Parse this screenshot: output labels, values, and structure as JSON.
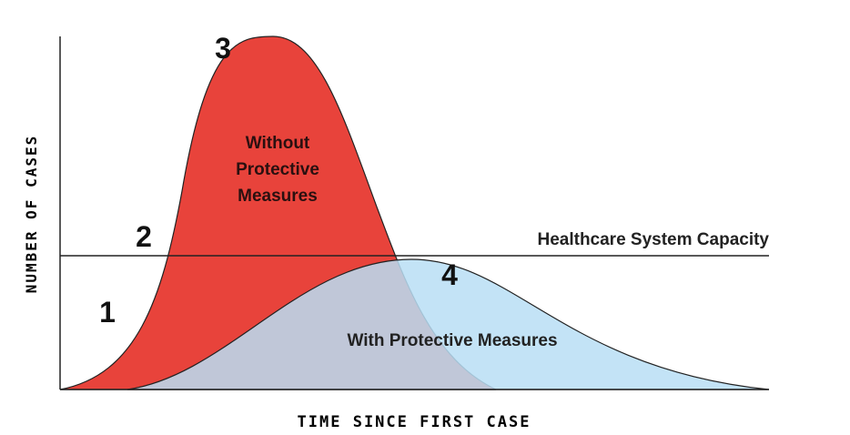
{
  "axes": {
    "y_label": "NUMBER OF CASES",
    "x_label": "TIME SINCE FIRST CASE"
  },
  "capacity_label": "Healthcare System Capacity",
  "curves": {
    "without": [
      "Without",
      "Protective",
      "Measures"
    ],
    "with": "With Protective Measures"
  },
  "markers": [
    "1",
    "2",
    "3",
    "4"
  ]
}
